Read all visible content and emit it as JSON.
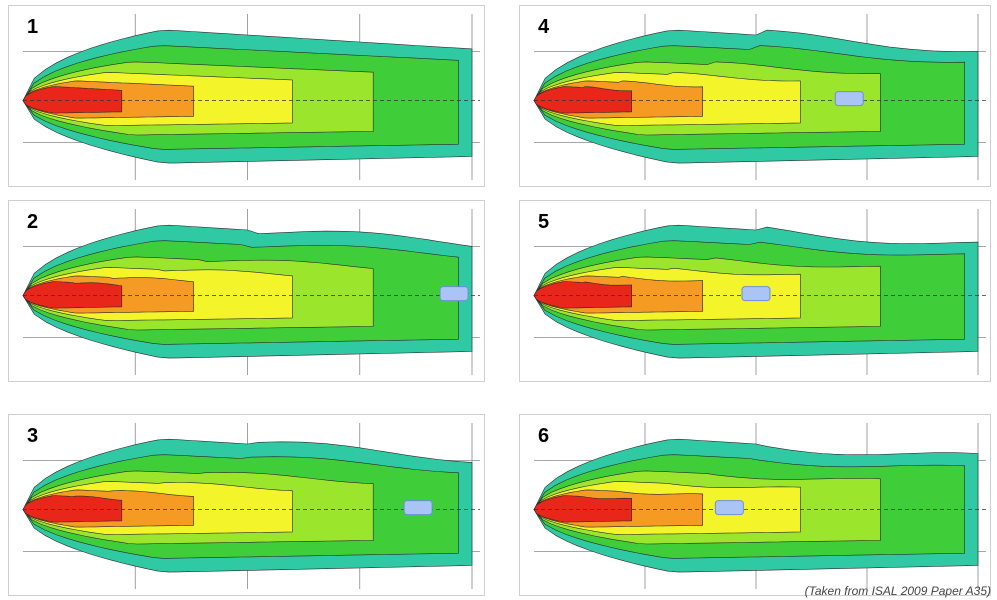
{
  "figure": {
    "credit": "(Taken from ISAL 2009 Paper A35)",
    "panels": [
      {
        "label": "1",
        "has_target": false,
        "target_x": 0
      },
      {
        "label": "2",
        "has_target": true,
        "target_x": 0.96
      },
      {
        "label": "3",
        "has_target": true,
        "target_x": 0.88
      },
      {
        "label": "4",
        "has_target": true,
        "target_x": 0.71
      },
      {
        "label": "5",
        "has_target": true,
        "target_x": 0.5
      },
      {
        "label": "6",
        "has_target": true,
        "target_x": 0.44
      }
    ],
    "colors": {
      "outer": "#2fc9a4",
      "green": "#3fce3a",
      "lightgreen": "#9be62c",
      "yellow": "#f4f42a",
      "orange": "#f59a22",
      "red": "#e8261a",
      "grid": "#8a8a8a",
      "target": "#a9c4f5"
    }
  }
}
